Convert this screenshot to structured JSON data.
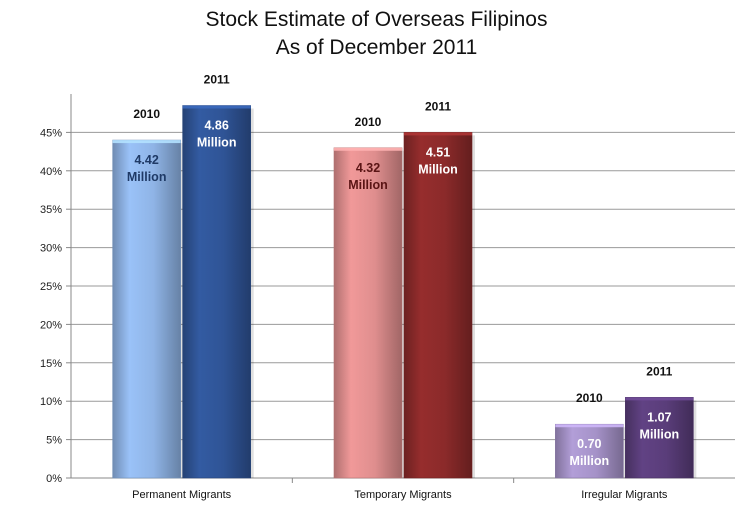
{
  "chart_data": {
    "type": "bar",
    "title": "Stock Estimate of Overseas Filipinos",
    "subtitle": "As of December 2011",
    "categories": [
      "Permanent Migrants",
      "Temporary Migrants",
      "Irregular Migrants"
    ],
    "series": [
      {
        "name": "2010",
        "values": [
          44,
          43,
          7
        ],
        "labels": [
          [
            "4.42",
            "Million"
          ],
          [
            "4.32",
            "Million"
          ],
          [
            "0.70",
            "Million"
          ]
        ],
        "colors": [
          "#8fb4e6",
          "#df8e8e",
          "#a592c8"
        ]
      },
      {
        "name": "2011",
        "values": [
          48.5,
          45,
          10.5
        ],
        "labels": [
          [
            "4.86",
            "Million"
          ],
          [
            "4.51",
            "Million"
          ],
          [
            "1.07",
            "Million"
          ]
        ],
        "colors": [
          "#2f5496",
          "#8b2a2a",
          "#5a3d7a"
        ]
      }
    ],
    "yticks": [
      "0%",
      "5%",
      "10%",
      "15%",
      "20%",
      "25%",
      "30%",
      "35%",
      "40%",
      "45%"
    ],
    "ylim": [
      0,
      50
    ],
    "grid": true,
    "legend": "none"
  }
}
